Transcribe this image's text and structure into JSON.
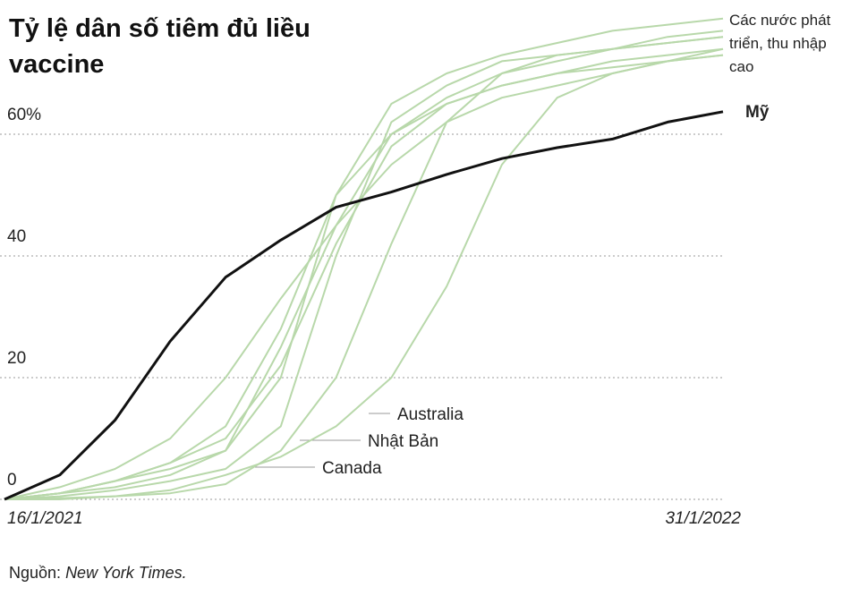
{
  "chart_data": {
    "type": "line",
    "title": "Tỷ lệ dân số tiêm đủ liều vaccine",
    "group_annotation": "Các nước phát triển, thu nhập cao",
    "source_prefix": "Nguồn:",
    "source": "New York Times.",
    "categories": [
      "16/1/2021",
      null,
      null,
      null,
      null,
      null,
      null,
      null,
      null,
      null,
      null,
      null,
      null,
      "31/1/2022"
    ],
    "ylim": [
      0,
      80
    ],
    "yticks": [
      0,
      20,
      40,
      {
        "value": 60,
        "label": "60%"
      }
    ],
    "grid": true,
    "series": [
      {
        "color": "#b8d8aa",
        "values": [
          0,
          1,
          3,
          5,
          8,
          20,
          50,
          65,
          70,
          73,
          75,
          77,
          78,
          79
        ]
      },
      {
        "color": "#b8d8aa",
        "values": [
          0,
          1,
          3,
          6,
          10,
          22,
          42,
          58,
          65,
          68,
          70,
          72,
          73,
          74
        ]
      },
      {
        "color": "#b8d8aa",
        "values": [
          0,
          1,
          2,
          4,
          8,
          25,
          45,
          60,
          65,
          68,
          70,
          71,
          72,
          73
        ]
      },
      {
        "color": "#b8d8aa",
        "values": [
          0,
          2,
          5,
          10,
          20,
          33,
          45,
          55,
          62,
          66,
          68,
          70,
          72,
          74
        ]
      },
      {
        "color": "#b8d8aa",
        "values": [
          0,
          1,
          3,
          6,
          12,
          28,
          50,
          60,
          66,
          70,
          72,
          74,
          76,
          77
        ]
      },
      {
        "name": "Canada",
        "color": "#b8d8aa",
        "values": [
          0,
          0.5,
          1.5,
          3,
          5,
          12,
          40,
          62,
          68,
          72,
          73,
          74,
          75,
          76
        ]
      },
      {
        "name": "Nhật Bản",
        "color": "#b8d8aa",
        "values": [
          0,
          0.2,
          0.5,
          1,
          2.5,
          8,
          20,
          42,
          62,
          70,
          73,
          74,
          75,
          76
        ]
      },
      {
        "name": "Australia",
        "color": "#b8d8aa",
        "values": [
          0,
          0,
          0.5,
          1.5,
          4,
          7,
          12,
          20,
          35,
          55,
          66,
          70,
          72,
          73
        ]
      },
      {
        "name": "Mỹ",
        "color": "#111111",
        "values": [
          0,
          4,
          13,
          26,
          36.5,
          42.6,
          48,
          50.5,
          53.4,
          56,
          57.8,
          59.2,
          62,
          63.7
        ]
      }
    ]
  }
}
